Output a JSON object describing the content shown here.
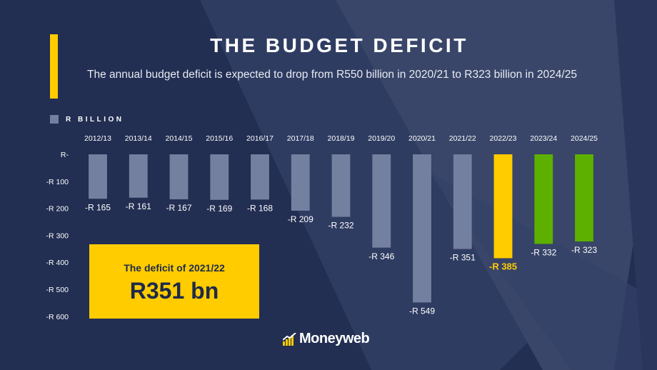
{
  "header": {
    "title": "THE BUDGET DEFICIT",
    "subtitle": "The annual budget deficit is expected to drop from R550 billion in 2020/21 to R323 billion in 2024/25"
  },
  "callout": {
    "label": "The deficit of 2021/22",
    "value": "R351 bn"
  },
  "brand": {
    "name": "Moneyweb"
  },
  "colors": {
    "background": "#222e52",
    "bar": "#7480a0",
    "highlight": "#ffcc00",
    "forecast": "#5db000"
  },
  "chart_data": {
    "type": "bar",
    "title": "THE BUDGET DEFICIT",
    "legend": {
      "label": "R BILLION",
      "placement": "top-left"
    },
    "categories": [
      "2012/13",
      "2013/14",
      "2014/15",
      "2015/16",
      "2016/17",
      "2017/18",
      "2018/19",
      "2019/20",
      "2020/21",
      "2021/22",
      "2022/23",
      "2023/24",
      "2024/25"
    ],
    "values": [
      -165,
      -161,
      -167,
      -169,
      -168,
      -209,
      -232,
      -346,
      -549,
      -351,
      -385,
      -332,
      -323
    ],
    "data_labels": [
      "-R 165",
      "-R 161",
      "-R 167",
      "-R 169",
      "-R 168",
      "-R 209",
      "-R 232",
      "-R 346",
      "-R 549",
      "-R 351",
      "-R 385",
      "-R 332",
      "-R 323"
    ],
    "bar_colors": [
      "#7480a0",
      "#7480a0",
      "#7480a0",
      "#7480a0",
      "#7480a0",
      "#7480a0",
      "#7480a0",
      "#7480a0",
      "#7480a0",
      "#7480a0",
      "#ffcc00",
      "#5db000",
      "#5db000"
    ],
    "yticks": [
      0,
      -100,
      -200,
      -300,
      -400,
      -500,
      -600
    ],
    "ytick_labels": [
      "R-",
      "-R 100",
      "-R 200",
      "-R 300",
      "-R 400",
      "-R 500",
      "-R 600"
    ],
    "ylim": [
      -600,
      0
    ],
    "grid": false
  }
}
